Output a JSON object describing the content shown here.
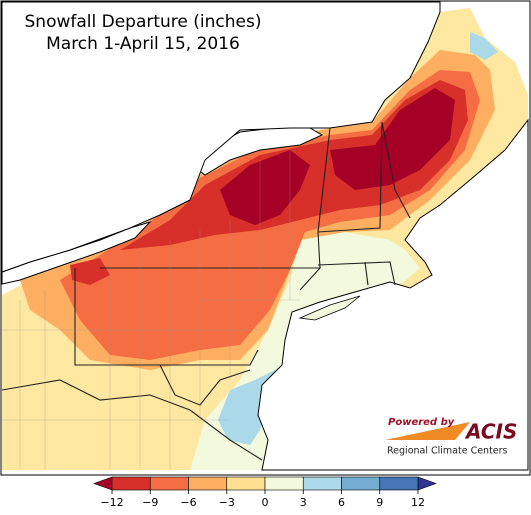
{
  "title": [
    "Snowfall Departure (inches)",
    "March 1-April 15, 2016"
  ],
  "legend": {
    "ticks": [
      {
        "value": -12,
        "label": "−12"
      },
      {
        "value": -9,
        "label": "−9"
      },
      {
        "value": -6,
        "label": "−6"
      },
      {
        "value": -3,
        "label": "−3"
      },
      0,
      3,
      6,
      9,
      12
    ],
    "colors": [
      "#a50026",
      "#d7302a",
      "#f46d43",
      "#fdae61",
      "#fee090",
      "#f3f9dc",
      "#abd9e9",
      "#74add1",
      "#4575b4",
      "#313695"
    ]
  },
  "logo": {
    "tagline": "Powered by",
    "name": "ACIS",
    "subtitle": "Regional Climate Centers"
  }
}
